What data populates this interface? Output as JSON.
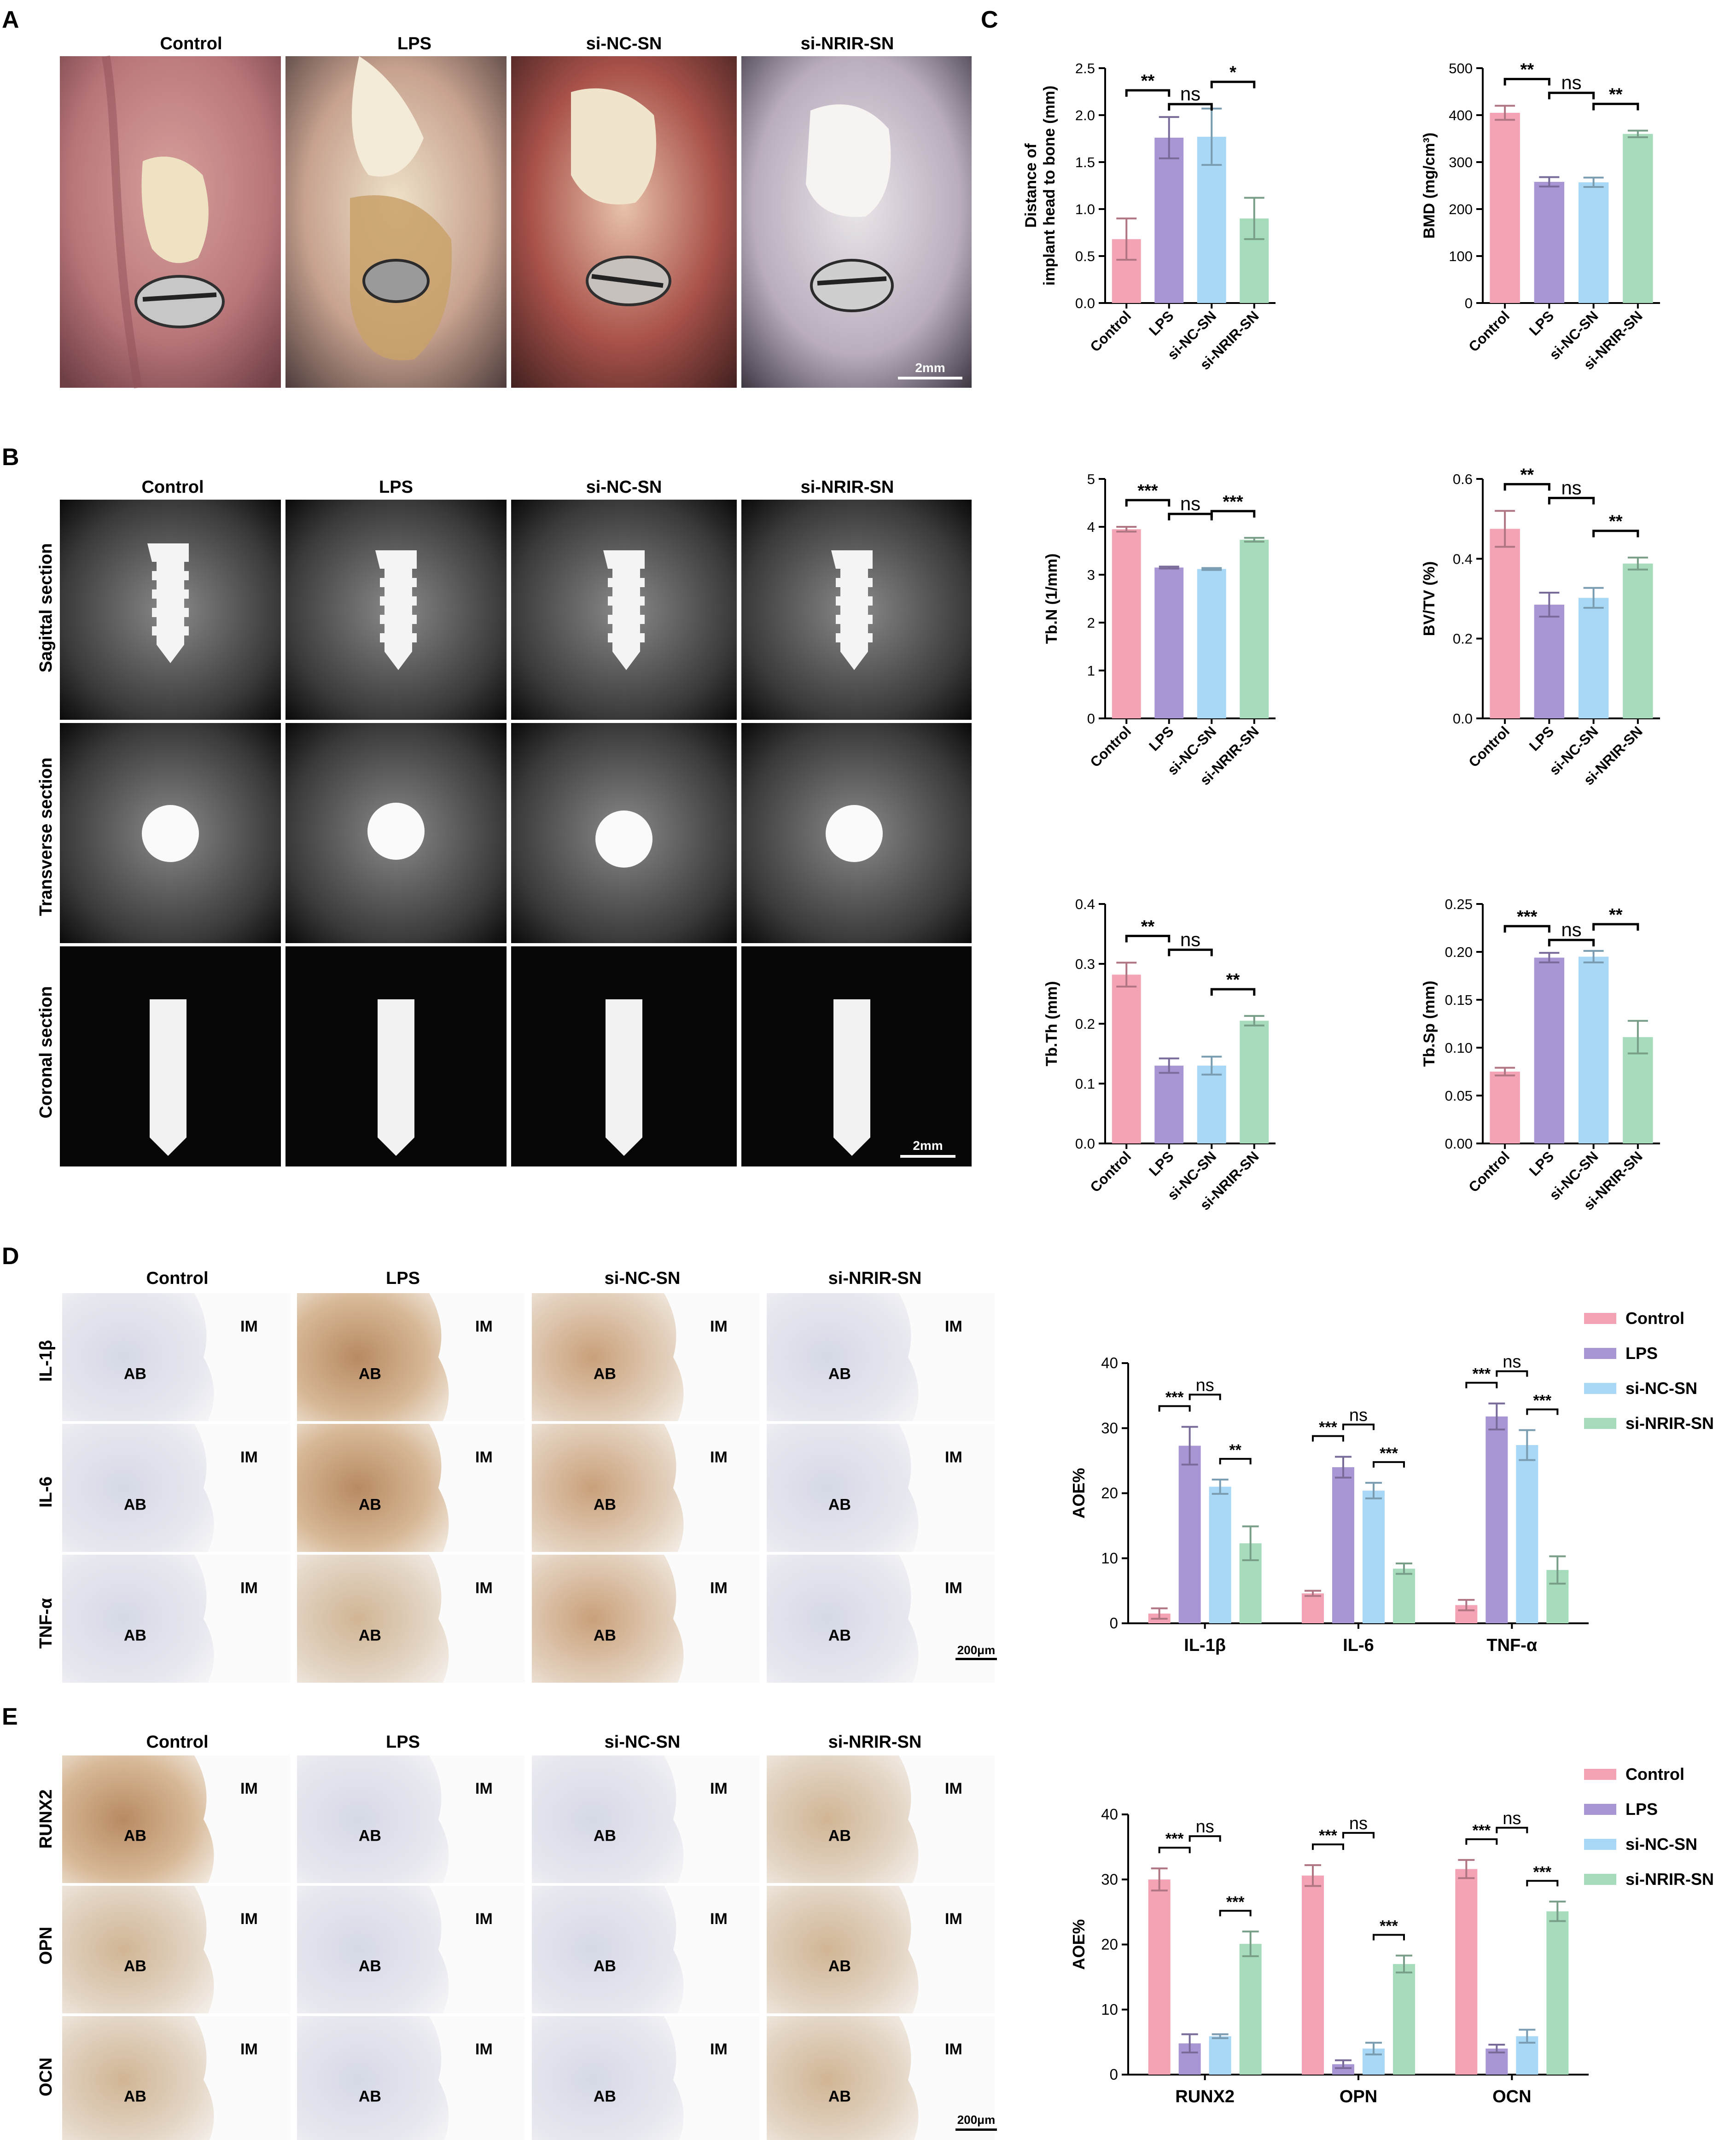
{
  "panel_letters": [
    "A",
    "B",
    "C",
    "D",
    "E"
  ],
  "groups": [
    "Control",
    "LPS",
    "si-NC-SN",
    "si-NRIR-SN"
  ],
  "colors": {
    "Control": "#f4a3b4",
    "LPS": "#a795d4",
    "si-NC-SN": "#a9d8f6",
    "si-NRIR-SN": "#a6dcbb"
  },
  "panelA": {
    "columns": [
      "Control",
      "LPS",
      "si-NC-SN",
      "si-NRIR-SN"
    ],
    "scale_bar": "2mm"
  },
  "panelB": {
    "columns": [
      "Control",
      "LPS",
      "si-NC-SN",
      "si-NRIR-SN"
    ],
    "rows": [
      "Sagittal section",
      "Transverse section",
      "Coronal section"
    ],
    "scale_bar": "2mm"
  },
  "panelD": {
    "columns": [
      "Control",
      "LPS",
      "si-NC-SN",
      "si-NRIR-SN"
    ],
    "rows": [
      "IL-1β",
      "IL-6",
      "TNF-α"
    ],
    "tissue_labels": [
      "IM",
      "AB"
    ],
    "scale_bar": "200μm"
  },
  "panelE": {
    "columns": [
      "Control",
      "LPS",
      "si-NC-SN",
      "si-NRIR-SN"
    ],
    "rows": [
      "RUNX2",
      "OPN",
      "OCN"
    ],
    "tissue_labels": [
      "IM",
      "AB"
    ],
    "scale_bar": "200μm"
  },
  "chart_data": [
    {
      "id": "C1",
      "type": "bar",
      "ylabel": "Distance of implant head to bone (mm)",
      "ylabel_lines": [
        "Distance of",
        "implant head to bone (mm)"
      ],
      "categories": [
        "Control",
        "LPS",
        "si-NC-SN",
        "si-NRIR-SN"
      ],
      "values": [
        0.68,
        1.76,
        1.77,
        0.9
      ],
      "errors": [
        0.22,
        0.22,
        0.3,
        0.22
      ],
      "ylim": [
        0,
        2.5
      ],
      "yticks": [
        "0.0",
        "0.5",
        "1.0",
        "1.5",
        "2.0",
        "2.5"
      ],
      "sig": [
        {
          "from": 0,
          "to": 1,
          "label": "**"
        },
        {
          "from": 1,
          "to": 2,
          "label": "ns"
        },
        {
          "from": 2,
          "to": 3,
          "label": "*"
        }
      ]
    },
    {
      "id": "C2",
      "type": "bar",
      "ylabel": "BMD (mg/cm³)",
      "ylabel_lines": [
        "BMD (mg/cm³)"
      ],
      "categories": [
        "Control",
        "LPS",
        "si-NC-SN",
        "si-NRIR-SN"
      ],
      "values": [
        405,
        258,
        257,
        360
      ],
      "errors": [
        15,
        10,
        10,
        7
      ],
      "ylim": [
        0,
        500
      ],
      "yticks": [
        "0",
        "100",
        "200",
        "300",
        "400",
        "500"
      ],
      "sig": [
        {
          "from": 0,
          "to": 1,
          "label": "**"
        },
        {
          "from": 1,
          "to": 2,
          "label": "ns"
        },
        {
          "from": 2,
          "to": 3,
          "label": "**"
        }
      ]
    },
    {
      "id": "C3",
      "type": "bar",
      "ylabel": "Tb.N (1/mm)",
      "ylabel_lines": [
        "Tb.N (1/mm)"
      ],
      "categories": [
        "Control",
        "LPS",
        "si-NC-SN",
        "si-NRIR-SN"
      ],
      "values": [
        3.95,
        3.15,
        3.12,
        3.73
      ],
      "errors": [
        0.05,
        0.02,
        0.02,
        0.04
      ],
      "ylim": [
        0,
        5
      ],
      "yticks": [
        "0",
        "1",
        "2",
        "3",
        "4",
        "5"
      ],
      "sig": [
        {
          "from": 0,
          "to": 1,
          "label": "***"
        },
        {
          "from": 1,
          "to": 2,
          "label": "ns"
        },
        {
          "from": 2,
          "to": 3,
          "label": "***"
        }
      ]
    },
    {
      "id": "C4",
      "type": "bar",
      "ylabel": "BV/TV (%)",
      "ylabel_lines": [
        "BV/TV (%)"
      ],
      "categories": [
        "Control",
        "LPS",
        "si-NC-SN",
        "si-NRIR-SN"
      ],
      "values": [
        0.475,
        0.285,
        0.302,
        0.388
      ],
      "errors": [
        0.045,
        0.03,
        0.025,
        0.015
      ],
      "ylim": [
        0,
        0.6
      ],
      "yticks": [
        "0.0",
        "0.2",
        "0.4",
        "0.6"
      ],
      "sig": [
        {
          "from": 0,
          "to": 1,
          "label": "**"
        },
        {
          "from": 1,
          "to": 2,
          "label": "ns"
        },
        {
          "from": 2,
          "to": 3,
          "label": "**"
        }
      ]
    },
    {
      "id": "C5",
      "type": "bar",
      "ylabel": "Tb.Th (mm)",
      "ylabel_lines": [
        "Tb.Th (mm)"
      ],
      "categories": [
        "Control",
        "LPS",
        "si-NC-SN",
        "si-NRIR-SN"
      ],
      "values": [
        0.282,
        0.13,
        0.13,
        0.205
      ],
      "errors": [
        0.02,
        0.012,
        0.015,
        0.008
      ],
      "ylim": [
        0,
        0.4
      ],
      "yticks": [
        "0.0",
        "0.1",
        "0.2",
        "0.3",
        "0.4"
      ],
      "sig": [
        {
          "from": 0,
          "to": 1,
          "label": "**"
        },
        {
          "from": 1,
          "to": 2,
          "label": "ns"
        },
        {
          "from": 2,
          "to": 3,
          "label": "**"
        }
      ]
    },
    {
      "id": "C6",
      "type": "bar",
      "ylabel": "Tb.Sp (mm)",
      "ylabel_lines": [
        "Tb.Sp (mm)"
      ],
      "categories": [
        "Control",
        "LPS",
        "si-NC-SN",
        "si-NRIR-SN"
      ],
      "values": [
        0.075,
        0.194,
        0.195,
        0.111
      ],
      "errors": [
        0.004,
        0.005,
        0.006,
        0.017
      ],
      "ylim": [
        0,
        0.25
      ],
      "yticks": [
        "0.00",
        "0.05",
        "0.10",
        "0.15",
        "0.20",
        "0.25"
      ],
      "sig": [
        {
          "from": 0,
          "to": 1,
          "label": "***"
        },
        {
          "from": 1,
          "to": 2,
          "label": "ns"
        },
        {
          "from": 2,
          "to": 3,
          "label": "**"
        }
      ]
    },
    {
      "id": "D",
      "type": "bar",
      "ylabel": "AOE%",
      "categories": [
        "IL-1β",
        "IL-6",
        "TNF-α"
      ],
      "series": [
        {
          "name": "Control",
          "values": [
            1.5,
            4.6,
            2.8
          ],
          "errors": [
            0.8,
            0.4,
            0.8
          ]
        },
        {
          "name": "LPS",
          "values": [
            27.3,
            24.0,
            31.8
          ],
          "errors": [
            2.9,
            1.6,
            2.0
          ]
        },
        {
          "name": "si-NC-SN",
          "values": [
            21.0,
            20.4,
            27.4
          ],
          "errors": [
            1.1,
            1.2,
            2.3
          ]
        },
        {
          "name": "si-NRIR-SN",
          "values": [
            12.3,
            8.4,
            8.2
          ],
          "errors": [
            2.6,
            0.8,
            2.1
          ]
        }
      ],
      "ylim": [
        0,
        40
      ],
      "yticks": [
        "0",
        "10",
        "20",
        "30",
        "40"
      ],
      "legend": "top-right",
      "sig": [
        {
          "group": 0,
          "from": 0,
          "to": 1,
          "label": "***"
        },
        {
          "group": 0,
          "from": 1,
          "to": 2,
          "label": "ns"
        },
        {
          "group": 0,
          "from": 2,
          "to": 3,
          "label": "**"
        },
        {
          "group": 1,
          "from": 0,
          "to": 1,
          "label": "***"
        },
        {
          "group": 1,
          "from": 1,
          "to": 2,
          "label": "ns"
        },
        {
          "group": 1,
          "from": 2,
          "to": 3,
          "label": "***"
        },
        {
          "group": 2,
          "from": 0,
          "to": 1,
          "label": "***"
        },
        {
          "group": 2,
          "from": 1,
          "to": 2,
          "label": "ns"
        },
        {
          "group": 2,
          "from": 2,
          "to": 3,
          "label": "***"
        }
      ]
    },
    {
      "id": "E",
      "type": "bar",
      "ylabel": "AOE%",
      "categories": [
        "RUNX2",
        "OPN",
        "OCN"
      ],
      "series": [
        {
          "name": "Control",
          "values": [
            30.0,
            30.6,
            31.6
          ],
          "errors": [
            1.7,
            1.6,
            1.4
          ]
        },
        {
          "name": "LPS",
          "values": [
            4.8,
            1.6,
            4.0
          ],
          "errors": [
            1.4,
            0.6,
            0.6
          ]
        },
        {
          "name": "si-NC-SN",
          "values": [
            5.9,
            4.0,
            5.9
          ],
          "errors": [
            0.3,
            0.9,
            1.0
          ]
        },
        {
          "name": "si-NRIR-SN",
          "values": [
            20.1,
            17.0,
            25.1
          ],
          "errors": [
            1.9,
            1.3,
            1.5
          ]
        }
      ],
      "ylim": [
        0,
        40
      ],
      "yticks": [
        "0",
        "10",
        "20",
        "30",
        "40"
      ],
      "legend": "top-right",
      "sig": [
        {
          "group": 0,
          "from": 0,
          "to": 1,
          "label": "***"
        },
        {
          "group": 0,
          "from": 1,
          "to": 2,
          "label": "ns"
        },
        {
          "group": 0,
          "from": 2,
          "to": 3,
          "label": "***"
        },
        {
          "group": 1,
          "from": 0,
          "to": 1,
          "label": "***"
        },
        {
          "group": 1,
          "from": 1,
          "to": 2,
          "label": "ns"
        },
        {
          "group": 1,
          "from": 2,
          "to": 3,
          "label": "***"
        },
        {
          "group": 2,
          "from": 0,
          "to": 1,
          "label": "***"
        },
        {
          "group": 2,
          "from": 1,
          "to": 2,
          "label": "ns"
        },
        {
          "group": 2,
          "from": 2,
          "to": 3,
          "label": "***"
        }
      ]
    }
  ]
}
